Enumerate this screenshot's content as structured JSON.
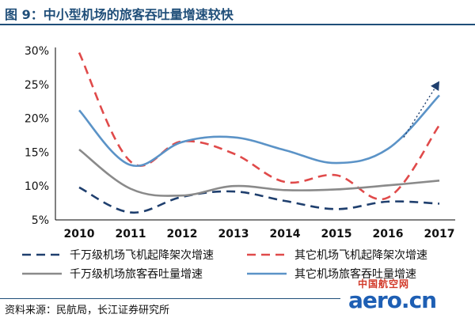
{
  "header": {
    "title": "图 9：中小型机场的旅客吞吐量增速较快"
  },
  "footer": {
    "source": "资料来源：民航局，长江证券研究所"
  },
  "watermark": {
    "cn_text": "中国航空网",
    "en_text": "aero.cn"
  },
  "colors": {
    "title": "#1f4e79",
    "navy_dash": "#1f3f6e",
    "red_dash": "#e04a4a",
    "gray": "#8a8a8a",
    "blue": "#5b93c7"
  },
  "chart_data": {
    "type": "line",
    "title": "",
    "xlabel": "",
    "ylabel": "",
    "ylim": [
      5,
      30
    ],
    "yticks": [
      "5%",
      "10%",
      "15%",
      "20%",
      "25%",
      "30%"
    ],
    "yticks_values": [
      5,
      10,
      15,
      20,
      25,
      30
    ],
    "categories": [
      "2010",
      "2011",
      "2012",
      "2013",
      "2014",
      "2015",
      "2016",
      "2017"
    ],
    "grid": false,
    "legend_position": "bottom",
    "series": [
      {
        "name": "千万级机场飞机起降架次增速",
        "values": [
          9.8,
          6.1,
          8.4,
          9.2,
          7.8,
          6.6,
          7.7,
          7.4
        ],
        "style": "dash",
        "color": "#1f3f6e"
      },
      {
        "name": "其它机场飞机起降架次增速",
        "values": [
          29.7,
          13.6,
          16.6,
          14.8,
          10.6,
          11.6,
          8.3,
          19.0
        ],
        "style": "dash",
        "color": "#e04a4a"
      },
      {
        "name": "千万级机场旅客吞吐量增速",
        "values": [
          15.4,
          9.6,
          8.6,
          10.0,
          9.4,
          9.5,
          10.1,
          10.8
        ],
        "style": "solid",
        "color": "#8a8a8a"
      },
      {
        "name": "其它机场旅客吞吐量增速",
        "values": [
          21.2,
          13.1,
          16.5,
          17.2,
          15.3,
          13.4,
          15.5,
          23.4
        ],
        "style": "solid",
        "color": "#5b93c7"
      }
    ],
    "annotations": [
      {
        "type": "dotted-arrow",
        "from": {
          "x": "2016",
          "y": 17.2
        },
        "to": {
          "x": "2017",
          "y": 25.5
        }
      }
    ]
  }
}
